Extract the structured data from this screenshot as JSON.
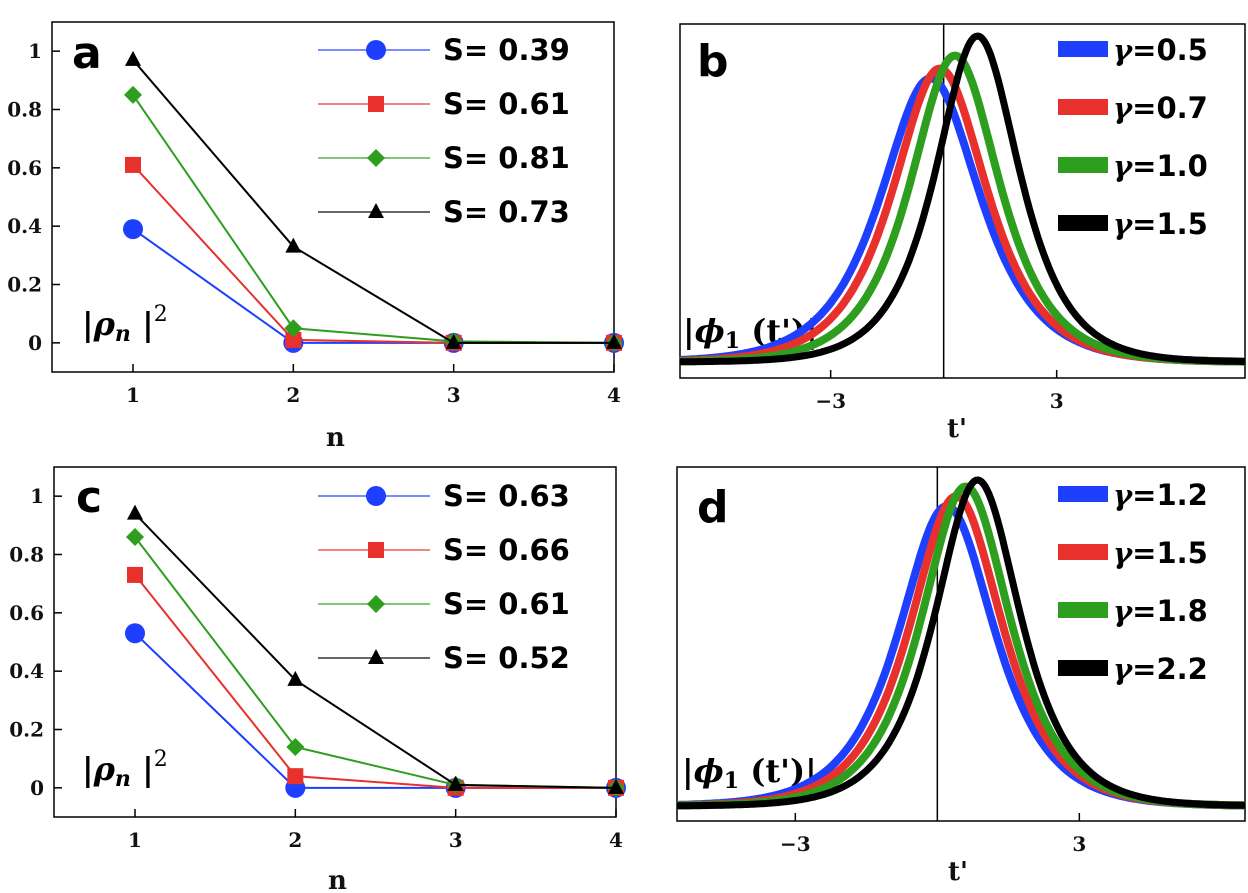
{
  "chart_data": [
    {
      "panel": "a",
      "type": "line",
      "x": [
        1,
        2,
        3,
        4
      ],
      "xlabel": "n",
      "ylabel": "|ρ_n |²",
      "xlim": [
        0.8,
        4
      ],
      "ylim": [
        -0.1,
        1.1
      ],
      "xticks": [
        "1",
        "2",
        "3",
        "4"
      ],
      "yticks": [
        "0",
        "0.2",
        "0.4",
        "0.6",
        "0.8",
        "1"
      ],
      "legend_position": "top-right",
      "series": [
        {
          "name": "S= 0.39",
          "color": "#1f3fff",
          "marker": "circle",
          "values": [
            0.39,
            0.0,
            0.0,
            0.0
          ]
        },
        {
          "name": "S= 0.61",
          "color": "#e8302c",
          "marker": "square",
          "values": [
            0.61,
            0.01,
            0.0,
            0.0
          ]
        },
        {
          "name": "S= 0.81",
          "color": "#2e9e1f",
          "marker": "diamond",
          "values": [
            0.85,
            0.05,
            0.005,
            0.0
          ]
        },
        {
          "name": "S= 0.73",
          "color": "#000000",
          "marker": "triangle",
          "values": [
            0.97,
            0.33,
            0.0,
            0.0
          ]
        }
      ]
    },
    {
      "panel": "b",
      "type": "line",
      "xlabel": "t'",
      "ylabel": "|ϕ₁ (t')|",
      "xlim": [
        -7,
        8
      ],
      "xticks": [
        "−3",
        "3"
      ],
      "vline_x": 0,
      "legend_position": "top-right",
      "series": [
        {
          "name": "γ=0.5",
          "color": "#1f3fff",
          "center": -0.35,
          "amplitude": 0.87,
          "width": 1.9
        },
        {
          "name": "γ=0.7",
          "color": "#e8302c",
          "center": -0.1,
          "amplitude": 0.9,
          "width": 1.8
        },
        {
          "name": "γ=1.0",
          "color": "#2e9e1f",
          "center": 0.3,
          "amplitude": 0.94,
          "width": 1.7
        },
        {
          "name": "γ=1.5",
          "color": "#000000",
          "center": 0.9,
          "amplitude": 1.0,
          "width": 1.6
        }
      ]
    },
    {
      "panel": "c",
      "type": "line",
      "x": [
        1,
        2,
        3,
        4
      ],
      "xlabel": "n",
      "ylabel": "|ρ_n |²",
      "xlim": [
        0.8,
        4
      ],
      "ylim": [
        -0.1,
        1.1
      ],
      "xticks": [
        "1",
        "2",
        "3",
        "4"
      ],
      "yticks": [
        "0",
        "0.2",
        "0.4",
        "0.6",
        "0.8",
        "1"
      ],
      "legend_position": "top-right",
      "series": [
        {
          "name": "S= 0.63",
          "color": "#1f3fff",
          "marker": "circle",
          "values": [
            0.53,
            0.0,
            0.0,
            0.0
          ]
        },
        {
          "name": "S= 0.66",
          "color": "#e8302c",
          "marker": "square",
          "values": [
            0.73,
            0.04,
            0.0,
            0.0
          ]
        },
        {
          "name": "S= 0.61",
          "color": "#2e9e1f",
          "marker": "diamond",
          "values": [
            0.86,
            0.14,
            0.01,
            0.0
          ]
        },
        {
          "name": "S= 0.52",
          "color": "#000000",
          "marker": "triangle",
          "values": [
            0.94,
            0.37,
            0.01,
            0.0
          ]
        }
      ]
    },
    {
      "panel": "d",
      "type": "line",
      "xlabel": "t'",
      "ylabel": "|ϕ₁ (t')|",
      "xlim": [
        -5.5,
        6.5
      ],
      "xticks": [
        "−3",
        "3"
      ],
      "vline_x": 0,
      "legend_position": "top-right",
      "series": [
        {
          "name": "γ=1.2",
          "color": "#1f3fff",
          "center": 0.2,
          "amplitude": 0.92,
          "width": 1.45
        },
        {
          "name": "γ=1.5",
          "color": "#e8302c",
          "center": 0.4,
          "amplitude": 0.95,
          "width": 1.4
        },
        {
          "name": "γ=1.8",
          "color": "#2e9e1f",
          "center": 0.6,
          "amplitude": 0.98,
          "width": 1.35
        },
        {
          "name": "γ=2.2",
          "color": "#000000",
          "center": 0.85,
          "amplitude": 1.0,
          "width": 1.3
        }
      ]
    }
  ]
}
